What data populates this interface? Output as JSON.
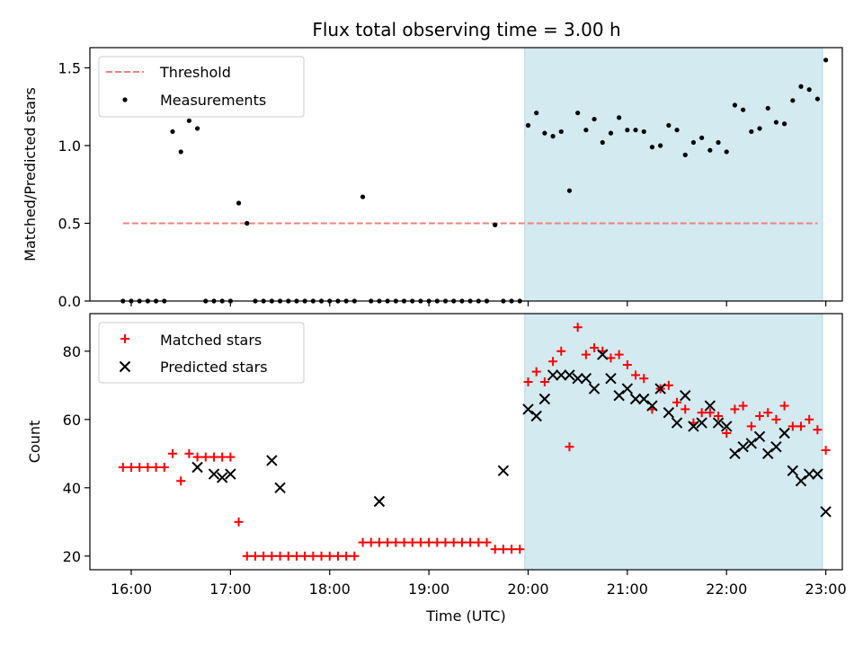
{
  "title": "Flux total observing time = 3.00 h",
  "colors": {
    "threshold": "#f08080",
    "measurements": "#000000",
    "matched": "#ff0000",
    "predicted": "#000000",
    "shade": "#d3eaf1",
    "shade_edge": "#add8e6"
  },
  "chart_data": [
    {
      "type": "scatter",
      "panel": "top",
      "ylabel": "Matched/Predicted stars",
      "xlim": [
        "15:35",
        "23:10"
      ],
      "ylim": [
        0,
        1.63
      ],
      "yticks": [
        0.0,
        0.5,
        1.0,
        1.5
      ],
      "yticklabels": [
        "0.0",
        "0.5",
        "1.0",
        "1.5"
      ],
      "grid": false,
      "legend_position": "upper-left",
      "shaded_region": {
        "x": [
          "19:58",
          "22:58"
        ]
      },
      "threshold": {
        "name": "Threshold",
        "y": 0.5,
        "x": [
          "15:55",
          "22:55"
        ],
        "style": "dashed"
      },
      "series": [
        {
          "name": "Measurements",
          "marker": "dot",
          "x": [
            "15:55",
            "16:00",
            "16:05",
            "16:10",
            "16:15",
            "16:20",
            "16:25",
            "16:30",
            "16:35",
            "16:40",
            "16:45",
            "16:50",
            "16:55",
            "17:00",
            "17:05",
            "17:10",
            "17:15",
            "17:20",
            "17:25",
            "17:30",
            "17:35",
            "17:40",
            "17:45",
            "17:50",
            "17:55",
            "18:00",
            "18:05",
            "18:10",
            "18:15",
            "18:20",
            "18:25",
            "18:30",
            "18:35",
            "18:40",
            "18:45",
            "18:50",
            "18:55",
            "19:00",
            "19:05",
            "19:10",
            "19:15",
            "19:20",
            "19:25",
            "19:30",
            "19:35",
            "19:40",
            "19:45",
            "19:50",
            "19:55",
            "20:00",
            "20:05",
            "20:10",
            "20:15",
            "20:20",
            "20:25",
            "20:30",
            "20:35",
            "20:40",
            "20:45",
            "20:50",
            "20:55",
            "21:00",
            "21:05",
            "21:10",
            "21:15",
            "21:20",
            "21:25",
            "21:30",
            "21:35",
            "21:40",
            "21:45",
            "21:50",
            "21:55",
            "22:00",
            "22:05",
            "22:10",
            "22:15",
            "22:20",
            "22:25",
            "22:30",
            "22:35",
            "22:40",
            "22:45",
            "22:50",
            "22:55",
            "23:00"
          ],
          "y": [
            0,
            0,
            0,
            0,
            0,
            0,
            1.09,
            0.96,
            1.16,
            1.11,
            0,
            0,
            0,
            0,
            0.63,
            0.5,
            0,
            0,
            0,
            0,
            0,
            0,
            0,
            0,
            0,
            0,
            0,
            0,
            0,
            0.67,
            0,
            0,
            0,
            0,
            0,
            0,
            0,
            0,
            0,
            0,
            0,
            0,
            0,
            0,
            0,
            0.49,
            0,
            0,
            0,
            1.13,
            1.21,
            1.08,
            1.06,
            1.09,
            0.71,
            1.21,
            1.1,
            1.17,
            1.02,
            1.08,
            1.18,
            1.1,
            1.1,
            1.09,
            0.99,
            1.0,
            1.13,
            1.1,
            0.94,
            1.02,
            1.05,
            0.97,
            1.02,
            0.96,
            1.26,
            1.23,
            1.09,
            1.11,
            1.24,
            1.15,
            1.14,
            1.29,
            1.38,
            1.36,
            1.3,
            1.55
          ]
        }
      ]
    },
    {
      "type": "scatter",
      "panel": "bottom",
      "xlabel": "Time (UTC)",
      "ylabel": "Count",
      "xlim": [
        "15:35",
        "23:10"
      ],
      "ylim": [
        16,
        91
      ],
      "xticks": [
        "16:00",
        "17:00",
        "18:00",
        "19:00",
        "20:00",
        "21:00",
        "22:00",
        "23:00"
      ],
      "yticks": [
        20,
        40,
        60,
        80
      ],
      "yticklabels": [
        "20",
        "40",
        "60",
        "80"
      ],
      "grid": false,
      "legend_position": "upper-left",
      "shaded_region": {
        "x": [
          "19:58",
          "22:58"
        ]
      },
      "series": [
        {
          "name": "Matched stars",
          "marker": "plus",
          "x": [
            "15:55",
            "16:00",
            "16:05",
            "16:10",
            "16:15",
            "16:20",
            "16:25",
            "16:30",
            "16:35",
            "16:40",
            "16:45",
            "16:50",
            "16:55",
            "17:00",
            "17:05",
            "17:10",
            "17:15",
            "17:20",
            "17:25",
            "17:30",
            "17:35",
            "17:40",
            "17:45",
            "17:50",
            "17:55",
            "18:00",
            "18:05",
            "18:10",
            "18:15",
            "18:20",
            "18:25",
            "18:30",
            "18:35",
            "18:40",
            "18:45",
            "18:50",
            "18:55",
            "19:00",
            "19:05",
            "19:10",
            "19:15",
            "19:20",
            "19:25",
            "19:30",
            "19:35",
            "19:40",
            "19:45",
            "19:50",
            "19:55",
            "20:00",
            "20:05",
            "20:10",
            "20:15",
            "20:20",
            "20:25",
            "20:30",
            "20:35",
            "20:40",
            "20:45",
            "20:50",
            "20:55",
            "21:00",
            "21:05",
            "21:10",
            "21:15",
            "21:20",
            "21:25",
            "21:30",
            "21:35",
            "21:40",
            "21:45",
            "21:50",
            "21:55",
            "22:00",
            "22:05",
            "22:10",
            "22:15",
            "22:20",
            "22:25",
            "22:30",
            "22:35",
            "22:40",
            "22:45",
            "22:50",
            "22:55",
            "23:00"
          ],
          "y": [
            46,
            46,
            46,
            46,
            46,
            46,
            50,
            42,
            50,
            49,
            49,
            49,
            49,
            49,
            30,
            20,
            20,
            20,
            20,
            20,
            20,
            20,
            20,
            20,
            20,
            20,
            20,
            20,
            20,
            24,
            24,
            24,
            24,
            24,
            24,
            24,
            24,
            24,
            24,
            24,
            24,
            24,
            24,
            24,
            24,
            22,
            22,
            22,
            22,
            71,
            74,
            71,
            77,
            80,
            52,
            87,
            79,
            81,
            80,
            78,
            79,
            76,
            73,
            72,
            63,
            69,
            70,
            65,
            63,
            59,
            62,
            62,
            61,
            56,
            63,
            64,
            58,
            61,
            62,
            60,
            64,
            58,
            58,
            60,
            57,
            51
          ]
        },
        {
          "name": "Predicted stars",
          "marker": "x",
          "x": [
            "16:40",
            "16:50",
            "16:55",
            "17:00",
            "17:25",
            "17:30",
            "18:30",
            "19:45",
            "20:00",
            "20:05",
            "20:10",
            "20:15",
            "20:20",
            "20:25",
            "20:30",
            "20:35",
            "20:40",
            "20:45",
            "20:50",
            "20:55",
            "21:00",
            "21:05",
            "21:10",
            "21:15",
            "21:20",
            "21:25",
            "21:30",
            "21:35",
            "21:40",
            "21:45",
            "21:50",
            "21:55",
            "22:00",
            "22:05",
            "22:10",
            "22:15",
            "22:20",
            "22:25",
            "22:30",
            "22:35",
            "22:40",
            "22:45",
            "22:50",
            "22:55",
            "23:00"
          ],
          "y": [
            46,
            44,
            43,
            44,
            48,
            40,
            36,
            45,
            63,
            61,
            66,
            73,
            73,
            73,
            72,
            72,
            69,
            79,
            72,
            67,
            69,
            66,
            66,
            64,
            69,
            62,
            59,
            67,
            58,
            59,
            64,
            59,
            58,
            50,
            52,
            53,
            55,
            50,
            52,
            56,
            45,
            42,
            44,
            44,
            33
          ]
        }
      ]
    }
  ]
}
